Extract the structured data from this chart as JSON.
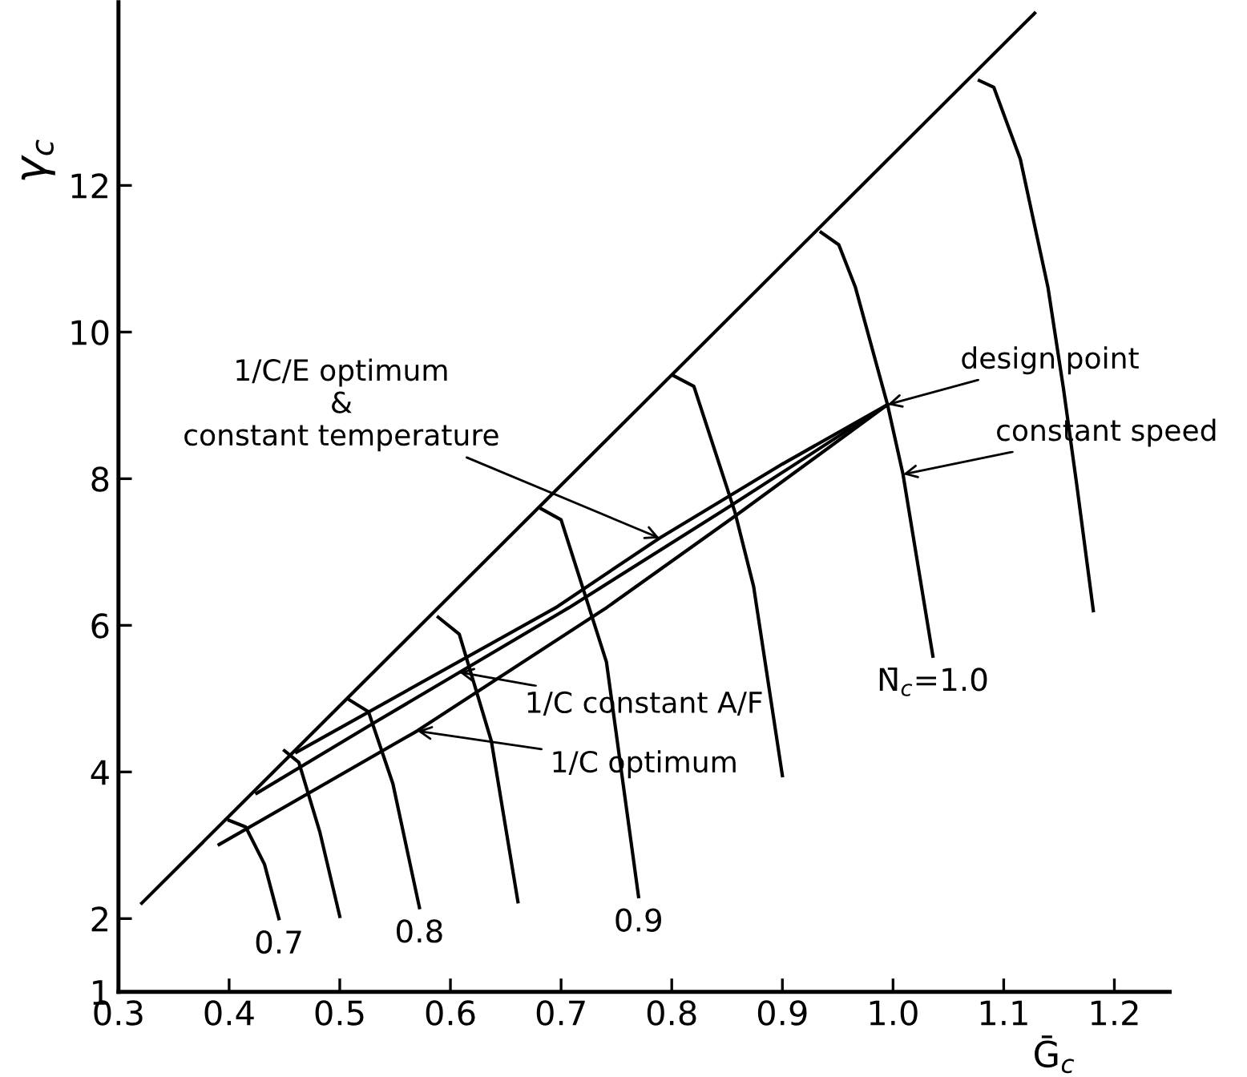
{
  "chart_data": {
    "type": "line",
    "xlabel": "Ḡ$_{c}$",
    "ylabel": "γ$_{c}$",
    "xlim": [
      0.3,
      1.25
    ],
    "ylim": [
      1,
      14.5
    ],
    "xticks": [
      0.3,
      0.4,
      0.5,
      0.6,
      0.7,
      0.8,
      0.9,
      {
        "value": 1.0,
        "label": "1.0"
      },
      1.1,
      1.2
    ],
    "yticks": [
      1,
      2,
      4,
      6,
      8,
      10,
      12
    ],
    "grid": false,
    "legend": false,
    "marker": "none",
    "line_style": "solid",
    "series": [
      {
        "color": "#000000",
        "x": [
          0.321,
          1.128
        ],
        "values": [
          2.21,
          14.35
        ]
      },
      {
        "color": "#000000",
        "x": [
          0.391,
          0.57,
          0.741,
          0.859,
          0.995
        ],
        "values": [
          3.01,
          4.56,
          6.24,
          7.51,
          9.01
        ]
      },
      {
        "color": "#000000",
        "x": [
          0.425,
          0.531,
          0.707,
          0.85,
          0.995
        ],
        "values": [
          3.71,
          4.67,
          6.24,
          7.6,
          9.01
        ]
      },
      {
        "color": "#000000",
        "x": [
          0.461,
          0.695,
          0.789,
          0.9,
          0.995
        ],
        "values": [
          4.27,
          6.24,
          7.19,
          8.2,
          9.01
        ]
      },
      {
        "name": "0.7",
        "color": "#000000",
        "x": [
          0.4,
          0.415,
          0.432,
          0.445
        ],
        "values": [
          3.34,
          3.25,
          2.74,
          2.0
        ]
      },
      {
        "color": "#000000",
        "x": [
          0.45,
          0.463,
          0.482,
          0.5
        ],
        "values": [
          4.29,
          4.13,
          3.18,
          2.03
        ]
      },
      {
        "name": "0.8",
        "color": "#000000",
        "x": [
          0.509,
          0.526,
          0.548,
          0.572
        ],
        "values": [
          4.98,
          4.82,
          3.84,
          2.15
        ]
      },
      {
        "color": "#000000",
        "x": [
          0.589,
          0.608,
          0.637,
          0.661
        ],
        "values": [
          6.11,
          5.88,
          4.42,
          2.23
        ]
      },
      {
        "name": "0.9",
        "color": "#000000",
        "x": [
          0.682,
          0.7,
          0.741,
          0.77
        ],
        "values": [
          7.59,
          7.44,
          5.5,
          2.3
        ]
      },
      {
        "color": "#000000",
        "x": [
          0.801,
          0.82,
          0.857,
          0.874,
          0.9
        ],
        "values": [
          9.41,
          9.26,
          7.55,
          6.53,
          3.95
        ]
      },
      {
        "name": "N̄$_{c}$=1.0",
        "color": "#000000",
        "x": [
          0.935,
          0.951,
          0.966,
          0.995,
          1.009,
          1.036
        ],
        "values": [
          11.36,
          11.19,
          10.61,
          9.01,
          8.06,
          5.58
        ]
      },
      {
        "color": "#000000",
        "x": [
          1.078,
          1.091,
          1.115,
          1.14,
          1.154,
          1.166,
          1.181
        ],
        "values": [
          13.43,
          13.34,
          12.36,
          10.61,
          9.23,
          7.92,
          6.2
        ]
      }
    ],
    "annotations": [
      {
        "text": "design point",
        "x": 0.995,
        "y": 9.01
      },
      {
        "text": "constant speed",
        "x": 1.009,
        "y": 8.06
      },
      {
        "text": "1/C constant A/F",
        "x": 0.608,
        "y": 5.36
      },
      {
        "text": "1/C optimum",
        "x": 0.57,
        "y": 4.56
      },
      {
        "text": "1/C/E optimum\n&\nconstant temperature",
        "x": 0.789,
        "y": 7.19
      }
    ]
  }
}
